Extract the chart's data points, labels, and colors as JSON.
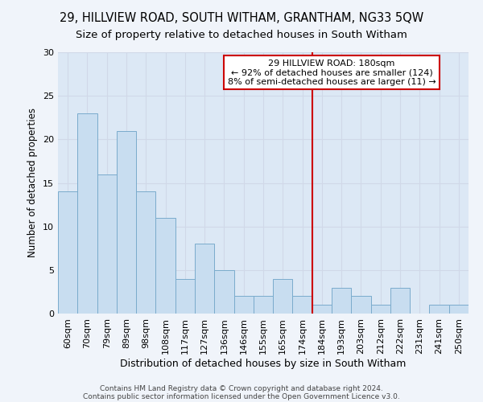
{
  "title1": "29, HILLVIEW ROAD, SOUTH WITHAM, GRANTHAM, NG33 5QW",
  "title2": "Size of property relative to detached houses in South Witham",
  "xlabel": "Distribution of detached houses by size in South Witham",
  "ylabel": "Number of detached properties",
  "categories": [
    "60sqm",
    "70sqm",
    "79sqm",
    "89sqm",
    "98sqm",
    "108sqm",
    "117sqm",
    "127sqm",
    "136sqm",
    "146sqm",
    "155sqm",
    "165sqm",
    "174sqm",
    "184sqm",
    "193sqm",
    "203sqm",
    "212sqm",
    "222sqm",
    "231sqm",
    "241sqm",
    "250sqm"
  ],
  "values": [
    14,
    23,
    16,
    21,
    14,
    11,
    4,
    8,
    5,
    2,
    2,
    4,
    2,
    1,
    3,
    2,
    1,
    3,
    0,
    1,
    1
  ],
  "bar_color": "#c8ddf0",
  "bar_edge_color": "#7aabcc",
  "vline_x_index": 13,
  "vline_color": "#cc0000",
  "annotation_title": "29 HILLVIEW ROAD: 180sqm",
  "annotation_line1": "← 92% of detached houses are smaller (124)",
  "annotation_line2": "8% of semi-detached houses are larger (11) →",
  "annotation_box_color": "#ffffff",
  "annotation_box_edge_color": "#cc0000",
  "ylim": [
    0,
    30
  ],
  "yticks": [
    0,
    5,
    10,
    15,
    20,
    25,
    30
  ],
  "grid_color": "#d0d8e8",
  "background_color": "#dce8f5",
  "fig_facecolor": "#f0f4fa",
  "footer1": "Contains HM Land Registry data © Crown copyright and database right 2024.",
  "footer2": "Contains public sector information licensed under the Open Government Licence v3.0.",
  "title1_fontsize": 10.5,
  "title2_fontsize": 9.5,
  "xlabel_fontsize": 9,
  "ylabel_fontsize": 8.5,
  "tick_fontsize": 8,
  "footer_fontsize": 6.5,
  "annotation_fontsize": 8
}
